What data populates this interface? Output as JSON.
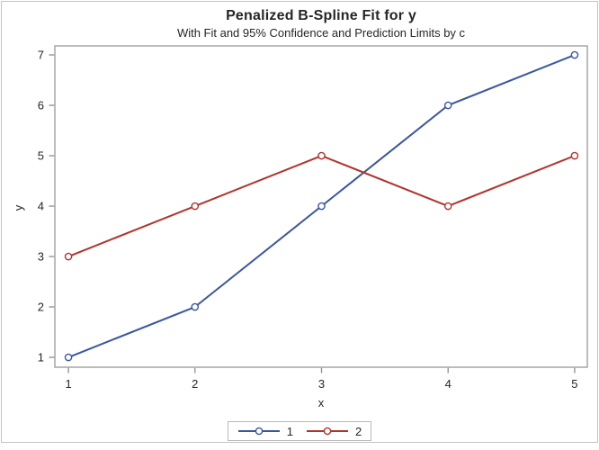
{
  "chart_data": {
    "type": "line",
    "title": "Penalized B-Spline Fit for y",
    "subtitle": "With Fit and 95% Confidence and Prediction Limits by c",
    "xlabel": "x",
    "ylabel": "y",
    "x": [
      1,
      2,
      3,
      4,
      5
    ],
    "xticks": [
      1,
      2,
      3,
      4,
      5
    ],
    "yticks": [
      1,
      2,
      3,
      4,
      5,
      6,
      7
    ],
    "xlim": [
      0.893,
      5.1
    ],
    "ylim": [
      0.804,
      7.179
    ],
    "grid": false,
    "marker": "open-circle",
    "series": [
      {
        "name": "1",
        "color": "#3A56A2",
        "values": [
          1,
          2,
          4,
          6,
          7
        ]
      },
      {
        "name": "2",
        "color": "#AF352C",
        "values": [
          3,
          4,
          5,
          4,
          5
        ]
      }
    ],
    "legend": {
      "position": "bottom",
      "entries": [
        "1",
        "2"
      ]
    }
  },
  "colors": {
    "frame": "#a6a6a6",
    "tick": "#8c8c8c",
    "text": "#262626",
    "outer_border": "#c4c4c4",
    "background": "#ffffff"
  }
}
